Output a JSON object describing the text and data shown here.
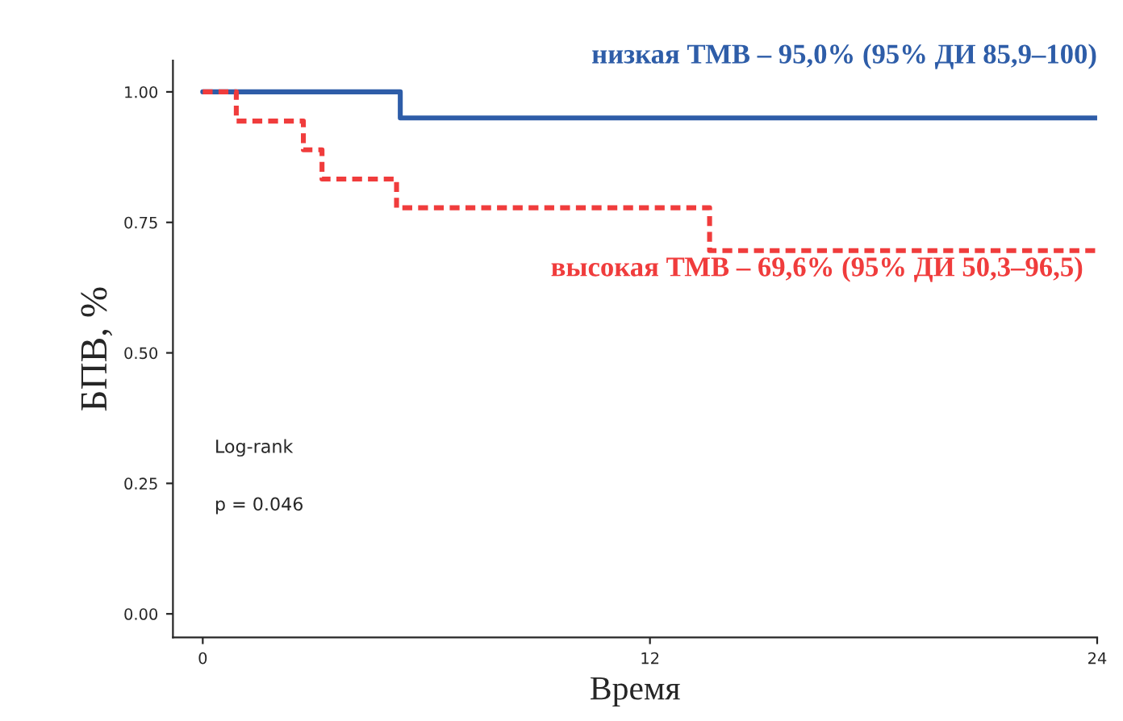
{
  "chart_data": {
    "type": "step",
    "xlabel": "Время",
    "ylabel": "БПВ, %",
    "xlim": [
      -0.8,
      24
    ],
    "xticks": [
      0,
      12,
      24
    ],
    "ylim": [
      -0.045,
      1.06
    ],
    "yticks": [
      {
        "value": 0,
        "label": "0.00"
      },
      {
        "value": 0.25,
        "label": "0.25"
      },
      {
        "value": 0.5,
        "label": "0.50"
      },
      {
        "value": 0.75,
        "label": "0.75"
      },
      {
        "value": 1,
        "label": "1.00"
      }
    ],
    "grid": false,
    "legend": false,
    "series": [
      {
        "name": "низкая ТМВ – 95,0% (95% ДИ 85,9–100)",
        "color": "#2e5da8",
        "line_style": "solid",
        "x": [
          0,
          5.3,
          24
        ],
        "values": [
          1,
          0.95,
          0.95
        ]
      },
      {
        "name": "высокая ТМВ – 69,6% (95% ДИ 50,3–96,5)",
        "color": "#f03c3c",
        "line_style": "dotted",
        "x": [
          0,
          0.9,
          2.7,
          3.2,
          5.2,
          13.6,
          24
        ],
        "values": [
          1,
          0.944,
          0.889,
          0.833,
          0.778,
          0.696,
          0.696
        ]
      }
    ],
    "annotations": [
      "Log-rank",
      "p = 0.046"
    ]
  }
}
